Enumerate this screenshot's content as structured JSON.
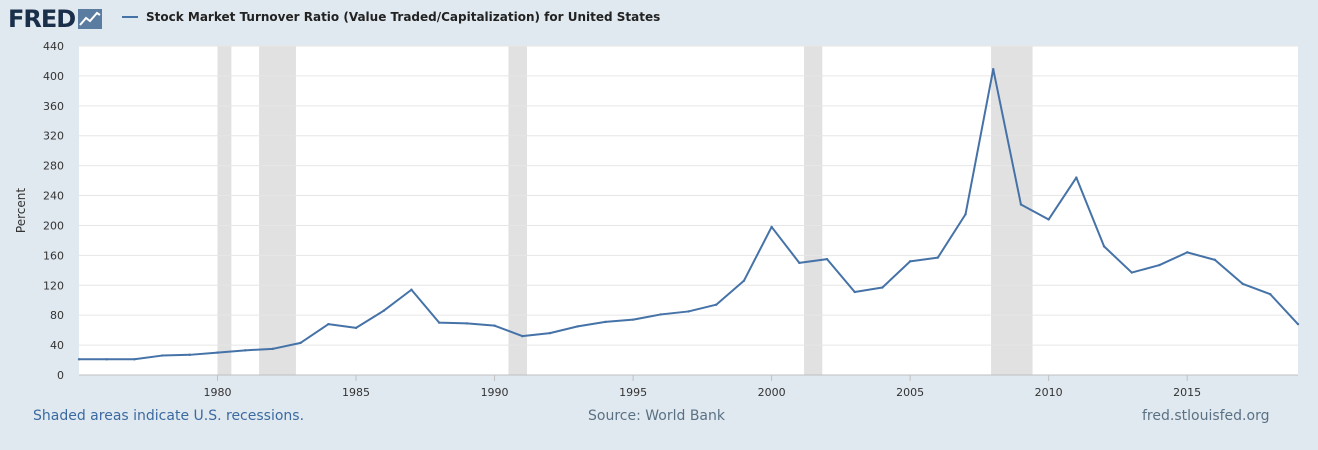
{
  "header": {
    "logo_text": "FRED",
    "legend_label": "Stock Market Turnover Ratio (Value Traded/Capitalization) for United States"
  },
  "footer": {
    "note": "Shaded areas indicate U.S. recessions.",
    "source": "Source: World Bank",
    "url": "fred.stlouisfed.org"
  },
  "colors": {
    "line": "#4572a7",
    "recession": "#e1e1e1",
    "background": "#e1e9f0",
    "plot": "#ffffff",
    "grid": "#e6e6e6"
  },
  "chart_data": {
    "type": "line",
    "title": "Stock Market Turnover Ratio (Value Traded/Capitalization) for United States",
    "ylabel": "Percent",
    "xlabel": "",
    "xlim": [
      1975,
      2019
    ],
    "ylim": [
      0,
      440
    ],
    "x_ticks": [
      1980,
      1985,
      1990,
      1995,
      2000,
      2005,
      2010,
      2015
    ],
    "y_ticks": [
      0,
      40,
      80,
      120,
      160,
      200,
      240,
      280,
      320,
      360,
      400,
      440
    ],
    "grid": true,
    "legend_position": "top-left",
    "recessions": [
      [
        1980.0,
        1980.5
      ],
      [
        1981.5,
        1982.83
      ],
      [
        1990.5,
        1991.17
      ],
      [
        2001.17,
        2001.83
      ],
      [
        2007.92,
        2009.42
      ]
    ],
    "series": [
      {
        "name": "Stock Market Turnover Ratio (Value Traded/Capitalization) for United States",
        "x": [
          1975,
          1976,
          1977,
          1978,
          1979,
          1980,
          1981,
          1982,
          1983,
          1984,
          1985,
          1986,
          1987,
          1988,
          1989,
          1990,
          1991,
          1992,
          1993,
          1994,
          1995,
          1996,
          1997,
          1998,
          1999,
          2000,
          2001,
          2002,
          2003,
          2004,
          2005,
          2006,
          2007,
          2008,
          2009,
          2010,
          2011,
          2012,
          2013,
          2014,
          2015,
          2016,
          2017,
          2018,
          2019
        ],
        "values": [
          21,
          21,
          21,
          26,
          27,
          30,
          33,
          35,
          43,
          68,
          63,
          86,
          114,
          70,
          69,
          66,
          52,
          56,
          65,
          71,
          74,
          81,
          85,
          94,
          126,
          198,
          150,
          155,
          111,
          117,
          152,
          157,
          215,
          409,
          228,
          208,
          264,
          172,
          137,
          147,
          164,
          154,
          122,
          108,
          68
        ]
      }
    ]
  }
}
